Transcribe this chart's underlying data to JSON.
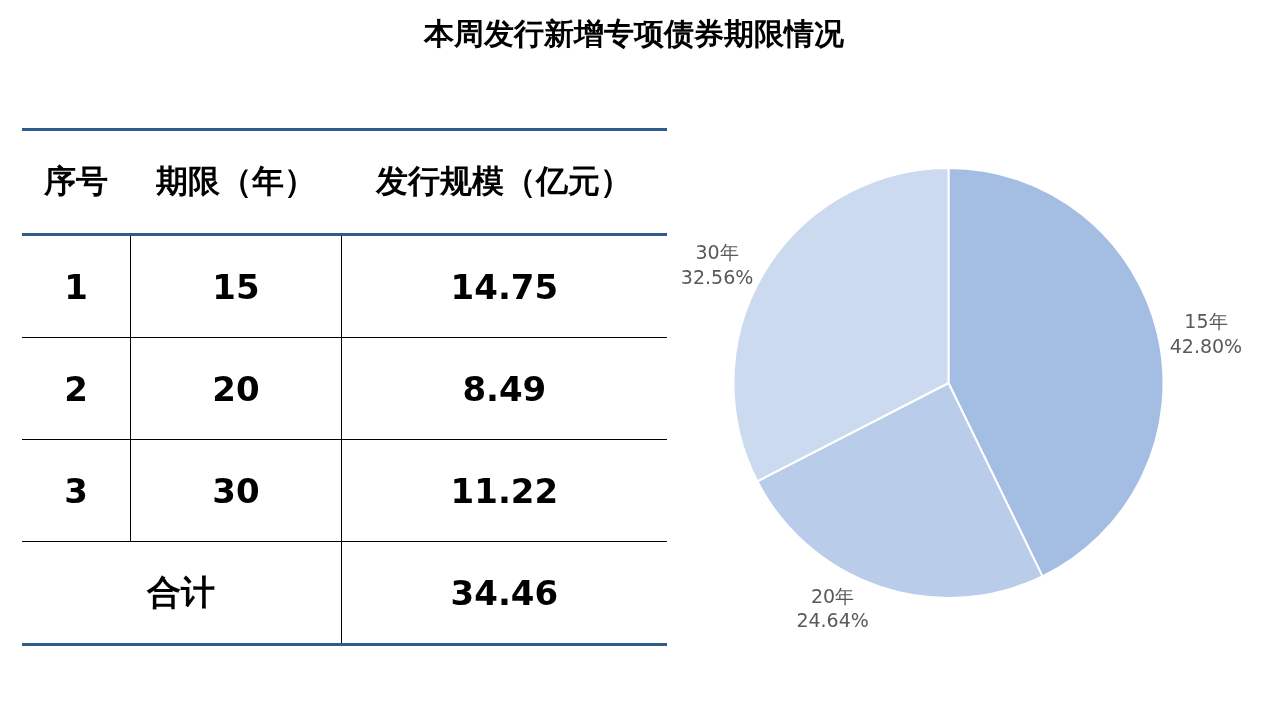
{
  "chart_data": [
    {
      "type": "other",
      "title": "本周发行新增专项债券期限情况",
      "categories": [
        "序号",
        "期限（年）",
        "发行规模（亿元）"
      ],
      "cell_labels": [
        [
          "1",
          "15",
          "14.75"
        ],
        [
          "2",
          "20",
          "8.49"
        ],
        [
          "3",
          "30",
          "11.22"
        ],
        [
          "合计",
          "34.46"
        ]
      ]
    },
    {
      "type": "pie",
      "categories": [
        "15年",
        "20年",
        "30年"
      ],
      "values": [
        42.8,
        24.64,
        32.56
      ],
      "colors": [
        "#a3bde3",
        "#b9cdea",
        "#cbdaee"
      ],
      "value_labels": [
        "42.80%",
        "24.64%",
        "32.56%"
      ]
    }
  ]
}
